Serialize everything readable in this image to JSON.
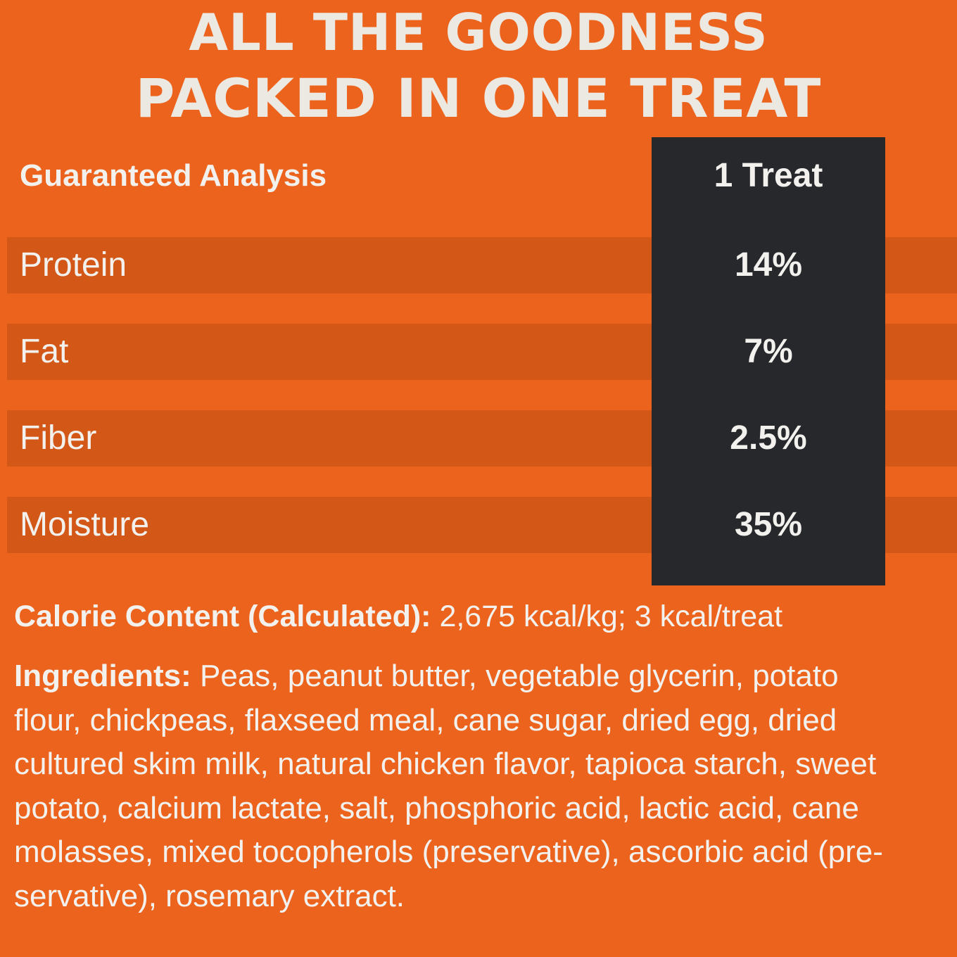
{
  "headline": {
    "line1": "ALL THE GOODNESS",
    "line2": "PACKED IN ONE TREAT"
  },
  "analysis_table": {
    "header_label": "Guaranteed Analysis",
    "header_value": "1 Treat",
    "rows": [
      {
        "label": "Protein",
        "value": "14%"
      },
      {
        "label": "Fat",
        "value": "7%"
      },
      {
        "label": "Fiber",
        "value": "2.5%"
      },
      {
        "label": "Moisture",
        "value": "35%"
      }
    ]
  },
  "calorie": {
    "label": "Calorie Content (Calculated):",
    "value": " 2,675 kcal/kg; 3 kcal/treat"
  },
  "ingredients": {
    "label": "Ingredients:",
    "lines": [
      " Peas, peanut butter, vegetable glycerin, potato",
      "flour, chickpeas, flaxseed meal, cane sugar, dried egg, dried",
      "cultured skim milk, natural chicken flavor, tapioca starch, sweet",
      "potato, calcium lactate, salt, phosphoric acid, lactic acid, cane",
      "molasses, mixed tocopherols (preservative), ascorbic acid (pre-",
      "servative), rosemary extract."
    ]
  },
  "colors": {
    "background": "#ec631d",
    "row_band": "#d35717",
    "value_column": "#26282b",
    "text": "#f3f1ee"
  }
}
